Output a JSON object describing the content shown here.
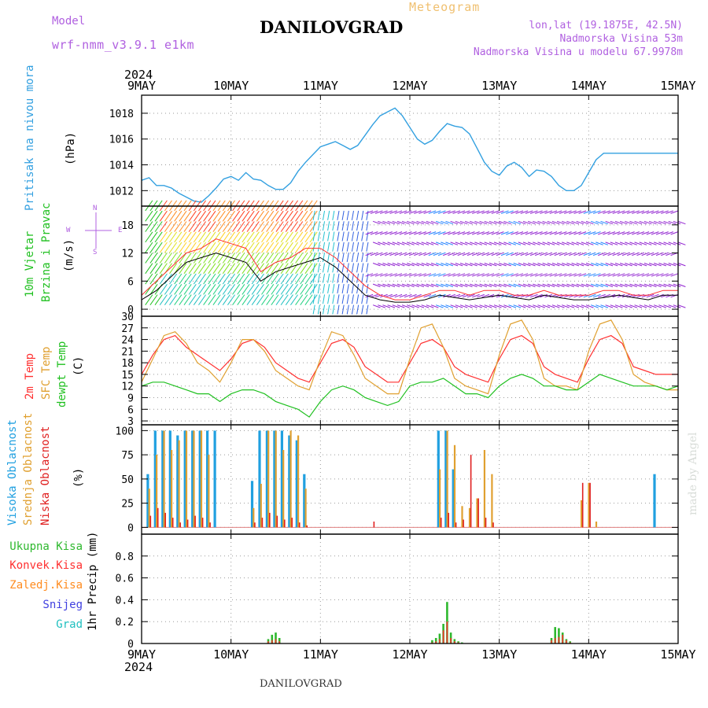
{
  "header": {
    "model_label": "Model",
    "model_name": "wrf-nmm_v3.9.1 e1km",
    "station_title": "DANILOVGRAD",
    "product": "Meteogram",
    "lonlat": "lon,lat (19.1875E, 42.5N)",
    "altitude": "Nadmorska Visina 53m",
    "model_altitude": "Nadmorska Visina u modelu 67.9978m"
  },
  "footer": {
    "station": "DANILOVGRAD",
    "credit": "made by Angel"
  },
  "time_axis": {
    "year": "2024",
    "ticks": [
      "9MAY",
      "10MAY",
      "11MAY",
      "12MAY",
      "13MAY",
      "14MAY",
      "15MAY"
    ]
  },
  "panel_labels": {
    "pressure": "Pritisak na nivou mora",
    "pressure_unit": "(hPa)",
    "wind_a": "10m Vjetar",
    "wind_b": "Brzina i Pravac",
    "wind_unit": "(m/s)",
    "compass_n": "N",
    "compass_s": "S",
    "compass_e": "E",
    "compass_w": "W",
    "temp_2m": "2m Temp",
    "temp_sfc": "SFC Temp",
    "temp_dew": "dewpt Temp",
    "temp_unit": "(C)",
    "cloud_high": "Visoka Oblacnost",
    "cloud_mid": "Srednja Oblacnost",
    "cloud_low": "Niska Oblacnost",
    "cloud_unit": "(%)",
    "precip_total": "Ukupna Kisa",
    "precip_conv": "Konvek.Kisa",
    "precip_frozen": "Zaledj.Kisa",
    "precip_snow": "Snijeg",
    "precip_hail": "Grad",
    "precip_unit": "1hr Precip (mm)"
  },
  "colors": {
    "pressure": "#33a0e0",
    "wind_speed": "#000000",
    "wind_gust": "#ff3030",
    "temp_2m": "#ff3030",
    "temp_sfc": "#e0a030",
    "temp_dew": "#20c020",
    "cloud_high": "#20a0e0",
    "cloud_mid": "#e0a030",
    "cloud_low": "#e02020",
    "precip_total": "#2eb82e",
    "precip_conv": "#ff3030",
    "precip_frozen": "#ff8c20",
    "precip_snow": "#4040e0",
    "precip_hail": "#20c0c0",
    "compass": "#b060e0"
  },
  "chart_data": [
    {
      "type": "line",
      "name": "pressure",
      "ylabel": "(hPa)",
      "ylim": [
        1010.8,
        1019.4
      ],
      "yticks": [
        1012,
        1014,
        1016,
        1018
      ],
      "x": [
        0,
        2,
        4,
        6,
        8,
        10,
        12,
        14,
        16,
        18,
        20,
        22,
        24,
        26,
        28,
        30,
        32,
        34,
        36,
        38,
        40,
        42,
        44,
        46,
        48,
        50,
        52,
        54,
        56,
        58,
        60,
        62,
        64,
        66,
        68,
        70,
        72,
        74,
        76,
        78,
        80,
        82,
        84,
        86,
        88,
        90,
        92,
        94,
        96,
        98,
        100,
        102,
        104,
        106,
        108,
        110,
        112,
        114,
        116,
        118,
        120,
        122,
        124,
        126,
        128,
        130,
        132,
        134,
        136,
        138,
        140,
        142,
        144
      ],
      "series": [
        {
          "values": [
            1012.8,
            1013.0,
            1012.4,
            1012.4,
            1012.2,
            1011.8,
            1011.5,
            1011.2,
            1011.1,
            1011.6,
            1012.2,
            1012.9,
            1013.1,
            1012.8,
            1013.4,
            1012.9,
            1012.8,
            1012.4,
            1012.1,
            1012.1,
            1012.6,
            1013.5,
            1014.2,
            1014.8,
            1015.4,
            1015.6,
            1015.8,
            1015.5,
            1015.2,
            1015.5,
            1016.3,
            1017.1,
            1017.8,
            1018.1,
            1018.4,
            1017.8,
            1016.9,
            1016.0,
            1015.6,
            1015.9,
            1016.6,
            1017.2,
            1017.0,
            1016.9,
            1016.4,
            1015.3,
            1014.2,
            1013.5,
            1013.2,
            1013.9,
            1014.2,
            1013.8,
            1013.1,
            1013.6,
            1013.5,
            1013.1,
            1012.4,
            1012.0,
            1012.0,
            1012.4,
            1013.4,
            1014.4,
            1014.9,
            1014.9,
            1014.9,
            1014.9,
            1014.9,
            1014.9,
            1014.9,
            1014.9,
            1014.9,
            1014.9,
            1014.9
          ]
        }
      ]
    },
    {
      "type": "line",
      "name": "wind",
      "ylabel": "(m/s)",
      "ylim": [
        -1.5,
        22
      ],
      "yticks": [
        0,
        6,
        12,
        18
      ],
      "x": [
        0,
        4,
        8,
        12,
        16,
        20,
        24,
        28,
        32,
        36,
        40,
        44,
        48,
        52,
        56,
        60,
        64,
        68,
        72,
        76,
        80,
        84,
        88,
        92,
        96,
        100,
        104,
        108,
        112,
        116,
        120,
        124,
        128,
        132,
        136,
        140,
        144
      ],
      "series": [
        {
          "name": "speed",
          "values": [
            2,
            4,
            7,
            10,
            11,
            12,
            11,
            10,
            6,
            8,
            9,
            10,
            11,
            9,
            6,
            3,
            2,
            1.5,
            1.5,
            2,
            3,
            2.5,
            2,
            2.5,
            3,
            2.5,
            2,
            3,
            2.5,
            2,
            2,
            2.5,
            3,
            2.5,
            2,
            3,
            3
          ]
        },
        {
          "name": "gust",
          "values": [
            3,
            6,
            9,
            12,
            13,
            15,
            14,
            13,
            8,
            10,
            11,
            13,
            13,
            11,
            8,
            5,
            3,
            2,
            2,
            3,
            4,
            4,
            3,
            4,
            4,
            3,
            3,
            4,
            3,
            3,
            3,
            4,
            4,
            3,
            3,
            4,
            4
          ]
        }
      ]
    },
    {
      "type": "line",
      "name": "temperature",
      "ylabel": "(C)",
      "ylim": [
        2,
        30
      ],
      "yticks": [
        3,
        6,
        9,
        12,
        15,
        18,
        21,
        24,
        27,
        30
      ],
      "x": [
        0,
        3,
        6,
        9,
        12,
        15,
        18,
        21,
        24,
        27,
        30,
        33,
        36,
        39,
        42,
        45,
        48,
        51,
        54,
        57,
        60,
        63,
        66,
        69,
        72,
        75,
        78,
        81,
        84,
        87,
        90,
        93,
        96,
        99,
        102,
        105,
        108,
        111,
        114,
        117,
        120,
        123,
        126,
        129,
        132,
        135,
        138,
        141,
        144
      ],
      "series": [
        {
          "name": "2m Temp",
          "values": [
            15,
            20,
            24,
            25,
            22,
            20,
            18,
            16,
            19,
            23,
            24,
            22,
            18,
            16,
            14,
            13,
            18,
            23,
            24,
            22,
            17,
            15,
            13,
            13,
            18,
            23,
            24,
            22,
            17,
            15,
            14,
            13,
            19,
            24,
            25,
            23,
            17,
            15,
            14,
            13,
            19,
            24,
            25,
            23,
            17,
            16,
            15,
            15,
            15
          ]
        },
        {
          "name": "SFC Temp",
          "values": [
            13,
            19,
            25,
            26,
            23,
            18,
            16,
            13,
            18,
            24,
            24,
            21,
            16,
            14,
            12,
            11,
            19,
            26,
            25,
            20,
            14,
            12,
            10,
            10,
            19,
            27,
            28,
            22,
            14,
            12,
            11,
            10,
            20,
            28,
            29,
            24,
            14,
            12,
            12,
            11,
            21,
            28,
            29,
            24,
            15,
            13,
            12,
            11,
            11
          ]
        },
        {
          "name": "dewpt Temp",
          "values": [
            12,
            13,
            13,
            12,
            11,
            10,
            10,
            8,
            10,
            11,
            11,
            10,
            8,
            7,
            6,
            4,
            8,
            11,
            12,
            11,
            9,
            8,
            7,
            8,
            12,
            13,
            13,
            14,
            12,
            10,
            10,
            9,
            12,
            14,
            15,
            14,
            12,
            12,
            11,
            11,
            13,
            15,
            14,
            13,
            12,
            12,
            12,
            11,
            12
          ]
        }
      ]
    },
    {
      "type": "bar",
      "name": "cloud_cover",
      "ylabel": "(%)",
      "ylim": [
        -7,
        106
      ],
      "yticks": [
        0,
        25,
        50,
        75,
        100
      ],
      "x": [
        2,
        4,
        6,
        8,
        10,
        12,
        14,
        16,
        18,
        20,
        22,
        24,
        26,
        28,
        30,
        32,
        34,
        36,
        38,
        40,
        42,
        44,
        46,
        48,
        50,
        52,
        54,
        56,
        58,
        60,
        62,
        64,
        66,
        68,
        70,
        72,
        74,
        76,
        78,
        80,
        82,
        84,
        86,
        88,
        90,
        92,
        94,
        96,
        98,
        100,
        102,
        104,
        106,
        108,
        110,
        112,
        114,
        116,
        118,
        120,
        122,
        124,
        126,
        128,
        130,
        132,
        134,
        136,
        138,
        140,
        142
      ],
      "series": [
        {
          "name": "high",
          "values": [
            55,
            100,
            100,
            100,
            95,
            100,
            100,
            100,
            100,
            100,
            0,
            0,
            0,
            0,
            48,
            100,
            100,
            100,
            100,
            95,
            90,
            55,
            0,
            0,
            0,
            0,
            0,
            0,
            0,
            0,
            0,
            0,
            0,
            0,
            0,
            0,
            0,
            0,
            0,
            100,
            100,
            60,
            0,
            0,
            0,
            0,
            0,
            0,
            0,
            0,
            0,
            0,
            0,
            0,
            0,
            0,
            0,
            0,
            0,
            0,
            0,
            0,
            0,
            0,
            0,
            0,
            0,
            0,
            55,
            0,
            0
          ]
        },
        {
          "name": "mid",
          "values": [
            40,
            75,
            100,
            80,
            90,
            100,
            100,
            100,
            75,
            0,
            0,
            0,
            0,
            0,
            20,
            45,
            100,
            100,
            80,
            100,
            95,
            40,
            0,
            0,
            0,
            0,
            0,
            0,
            0,
            0,
            0,
            0,
            0,
            0,
            0,
            0,
            0,
            0,
            0,
            60,
            100,
            85,
            22,
            20,
            30,
            80,
            55,
            0,
            0,
            0,
            0,
            0,
            0,
            0,
            0,
            0,
            0,
            0,
            28,
            46,
            6,
            0,
            0,
            0,
            0,
            0,
            0,
            0,
            0,
            0,
            0
          ]
        },
        {
          "name": "low",
          "values": [
            12,
            20,
            15,
            10,
            5,
            8,
            12,
            10,
            5,
            0,
            0,
            0,
            0,
            0,
            5,
            10,
            15,
            12,
            8,
            10,
            5,
            2,
            0,
            0,
            0,
            0,
            0,
            0,
            0,
            0,
            6,
            0,
            0,
            0,
            0,
            0,
            0,
            0,
            0,
            10,
            15,
            5,
            8,
            75,
            30,
            10,
            5,
            0,
            0,
            0,
            0,
            0,
            0,
            0,
            0,
            0,
            0,
            0,
            46,
            46,
            0,
            0,
            0,
            0,
            0,
            0,
            0,
            0,
            0,
            0,
            0
          ]
        }
      ]
    },
    {
      "type": "bar",
      "name": "precipitation",
      "ylabel": "1hr Precip (mm)",
      "ylim": [
        0,
        1.0
      ],
      "yticks": [
        0,
        0.2,
        0.4,
        0.6,
        0.8
      ],
      "x": [
        34,
        35,
        36,
        37,
        78,
        79,
        80,
        81,
        82,
        83,
        84,
        85,
        86,
        87,
        110,
        111,
        112,
        113,
        114,
        115
      ],
      "series": [
        {
          "name": "Ukupna Kisa",
          "values": [
            0.04,
            0.08,
            0.1,
            0.05,
            0.03,
            0.05,
            0.09,
            0.18,
            0.38,
            0.1,
            0.04,
            0.02,
            0.01,
            0.0,
            0.05,
            0.15,
            0.14,
            0.1,
            0.04,
            0.02
          ]
        },
        {
          "name": "Konvek.Kisa",
          "values": [
            0.02,
            0.03,
            0.04,
            0.02,
            0.01,
            0.02,
            0.04,
            0.12,
            0.2,
            0.05,
            0.02,
            0.01,
            0.0,
            0.0,
            0.03,
            0.05,
            0.06,
            0.08,
            0.03,
            0.01
          ]
        }
      ]
    }
  ]
}
